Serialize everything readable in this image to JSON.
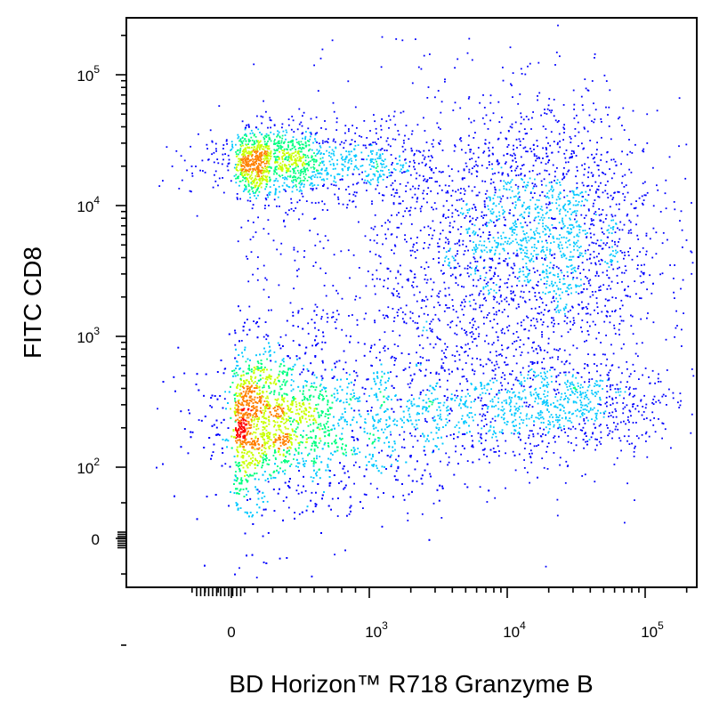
{
  "chart_data": {
    "type": "scatter",
    "subtype": "flow-cytometry-density-dot-plot",
    "xlabel": "BD Horizon™ R718  Granzyme B",
    "ylabel": "FITC  CD8",
    "x_scale": "biexponential",
    "y_scale": "biexponential",
    "xlim": [
      -300,
      200000
    ],
    "ylim": [
      -200,
      250000
    ],
    "x_ticks": [
      {
        "value": 0,
        "base": "0",
        "exp": ""
      },
      {
        "value": 1000,
        "base": "10",
        "exp": "3"
      },
      {
        "value": 10000,
        "base": "10",
        "exp": "4"
      },
      {
        "value": 100000,
        "base": "10",
        "exp": "5"
      }
    ],
    "y_ticks": [
      {
        "value": 0,
        "base": "0",
        "exp": ""
      },
      {
        "value": 100,
        "base": "10",
        "exp": "2"
      },
      {
        "value": 1000,
        "base": "10",
        "exp": "3"
      },
      {
        "value": 10000,
        "base": "10",
        "exp": "4"
      },
      {
        "value": 100000,
        "base": "10",
        "exp": "5"
      }
    ],
    "grid": false,
    "legend": "none",
    "density_colors": [
      "#0000ff",
      "#00c8ff",
      "#00ff80",
      "#c8ff00",
      "#ff8000",
      "#ff0000"
    ],
    "populations": [
      {
        "center_x": 350,
        "center_y": 220,
        "spread_x": 0.55,
        "spread_y": 0.3,
        "count": 4200
      },
      {
        "center_x": 350,
        "center_y": 22000,
        "spread_x": 0.4,
        "spread_y": 0.14,
        "count": 1500
      },
      {
        "center_x": 20000,
        "center_y": 6000,
        "spread_x": 0.4,
        "spread_y": 0.5,
        "count": 1700
      },
      {
        "center_x": 20000,
        "center_y": 300,
        "spread_x": 0.45,
        "spread_y": 0.18,
        "count": 900
      },
      {
        "center_x": 3000,
        "center_y": 3000,
        "spread_x": 0.6,
        "spread_y": 0.7,
        "count": 1200
      }
    ]
  }
}
